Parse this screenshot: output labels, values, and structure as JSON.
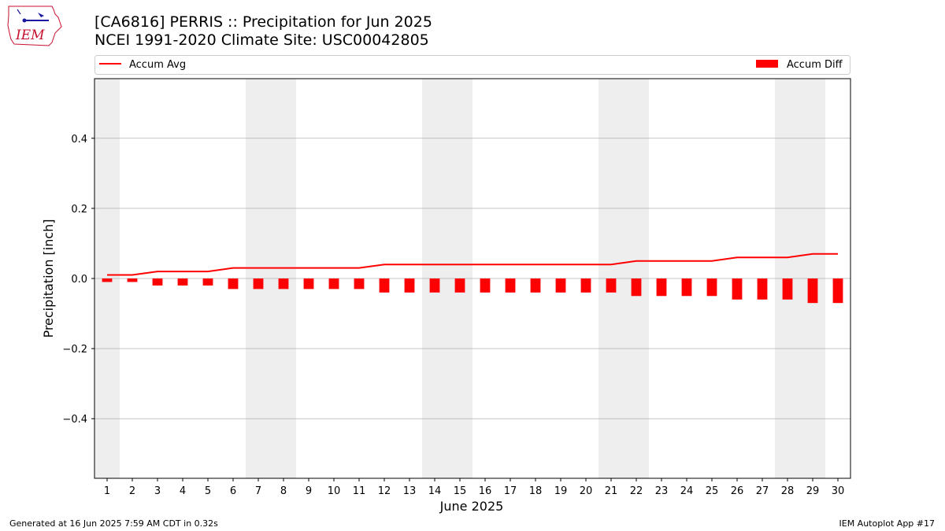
{
  "header": {
    "title_line1": "[CA6816] PERRIS :: Precipitation for Jun 2025",
    "title_line2": "NCEI 1991-2020 Climate Site: USC00042805",
    "logo_text": "IEM"
  },
  "footer": {
    "generated": "Generated at 16 Jun 2025 7:59 AM CDT in 0.32s",
    "app": "IEM Autoplot App #17"
  },
  "colors": {
    "series": "#ff0000",
    "weekend_shade": "#eeeeee",
    "grid": "#b0b0b0",
    "logo_outline": "#c8102e",
    "logo_accent": "#1a1aa0"
  },
  "chart_data": {
    "type": "bar",
    "xlabel": "June 2025",
    "ylabel": "Precipitation [inch]",
    "ylim": [
      -0.57,
      0.57
    ],
    "yticks": [
      -0.4,
      -0.2,
      0.0,
      0.2,
      0.4
    ],
    "ytick_labels": [
      "−0.4",
      "−0.2",
      "0.0",
      "0.2",
      "0.4"
    ],
    "xlim": [
      0.5,
      30.5
    ],
    "x": [
      1,
      2,
      3,
      4,
      5,
      6,
      7,
      8,
      9,
      10,
      11,
      12,
      13,
      14,
      15,
      16,
      17,
      18,
      19,
      20,
      21,
      22,
      23,
      24,
      25,
      26,
      27,
      28,
      29,
      30
    ],
    "categories": [
      "1",
      "2",
      "3",
      "4",
      "5",
      "6",
      "7",
      "8",
      "9",
      "10",
      "11",
      "12",
      "13",
      "14",
      "15",
      "16",
      "17",
      "18",
      "19",
      "20",
      "21",
      "22",
      "23",
      "24",
      "25",
      "26",
      "27",
      "28",
      "29",
      "30"
    ],
    "grid": "horizontal",
    "legend": [
      {
        "label": "Accum Avg",
        "kind": "line",
        "placement": "left"
      },
      {
        "label": "Accum Diff",
        "kind": "bar",
        "placement": "right"
      }
    ],
    "weekend_days": [
      1,
      7,
      8,
      14,
      15,
      21,
      22,
      28,
      29
    ],
    "series": [
      {
        "name": "Accum Avg",
        "kind": "line",
        "values": [
          0.01,
          0.01,
          0.02,
          0.02,
          0.02,
          0.03,
          0.03,
          0.03,
          0.03,
          0.03,
          0.03,
          0.04,
          0.04,
          0.04,
          0.04,
          0.04,
          0.04,
          0.04,
          0.04,
          0.04,
          0.04,
          0.05,
          0.05,
          0.05,
          0.05,
          0.06,
          0.06,
          0.06,
          0.07,
          0.07
        ]
      },
      {
        "name": "Accum Diff",
        "kind": "bar",
        "values": [
          -0.01,
          -0.01,
          -0.02,
          -0.02,
          -0.02,
          -0.03,
          -0.03,
          -0.03,
          -0.03,
          -0.03,
          -0.03,
          -0.04,
          -0.04,
          -0.04,
          -0.04,
          -0.04,
          -0.04,
          -0.04,
          -0.04,
          -0.04,
          -0.04,
          -0.05,
          -0.05,
          -0.05,
          -0.05,
          -0.06,
          -0.06,
          -0.06,
          -0.07,
          -0.07
        ]
      }
    ]
  }
}
